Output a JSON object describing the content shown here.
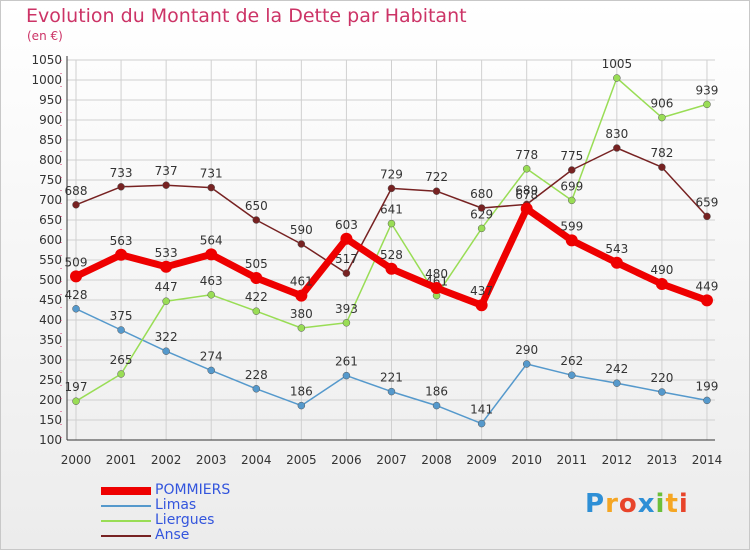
{
  "header": {
    "title": "Evolution du Montant de la Dette par Habitant",
    "unit": "(en €)"
  },
  "colors": {
    "title": "#cc3366",
    "POMMIERS": "#ee0000",
    "Limas": "#5599cc",
    "Liergues": "#99dd55",
    "Anse": "#772222",
    "legend_text": "#3355dd"
  },
  "chart_data": {
    "type": "line",
    "title": "Evolution du Montant de la Dette par Habitant",
    "subtitle": "(en €)",
    "x": [
      "2000",
      "2001",
      "2002",
      "2003",
      "2004",
      "2005",
      "2006",
      "2007",
      "2008",
      "2009",
      "2010",
      "2011",
      "2012",
      "2013",
      "2014"
    ],
    "ylim": [
      100,
      1050
    ],
    "yticks": [
      100,
      150,
      200,
      250,
      300,
      350,
      400,
      450,
      500,
      550,
      600,
      650,
      700,
      750,
      800,
      850,
      900,
      950,
      1000,
      1050
    ],
    "grid": true,
    "legend_position": "bottom-left",
    "series": [
      {
        "name": "POMMIERS",
        "values": [
          509,
          563,
          533,
          564,
          505,
          461,
          603,
          528,
          480,
          437,
          678,
          599,
          543,
          490,
          449
        ],
        "labels": [
          "509",
          "563",
          "533",
          "564",
          "505",
          "461",
          "603",
          "528",
          "480",
          "437",
          "678",
          "599",
          "543",
          "490",
          "449"
        ]
      },
      {
        "name": "Limas",
        "values": [
          428,
          375,
          322,
          274,
          228,
          186,
          261,
          221,
          186,
          141,
          290,
          262,
          242,
          220,
          199
        ],
        "labels": [
          "428",
          "375",
          "322",
          "274",
          "228",
          "186",
          "261",
          "221",
          "186",
          "141",
          "290",
          "262",
          "242",
          "220",
          "199"
        ]
      },
      {
        "name": "Liergues",
        "values": [
          197,
          265,
          447,
          463,
          422,
          380,
          393,
          641,
          461,
          629,
          778,
          699,
          1005,
          906,
          939
        ],
        "labels": [
          "197",
          "265",
          "447",
          "463",
          "422",
          "380",
          "393",
          "641",
          "461",
          "629",
          "778",
          "699",
          "1005",
          "906",
          "939"
        ]
      },
      {
        "name": "Anse",
        "values": [
          688,
          733,
          737,
          731,
          650,
          590,
          517,
          729,
          722,
          680,
          689,
          775,
          830,
          782,
          659
        ],
        "labels": [
          "688",
          "733",
          "737",
          "731",
          "650",
          "590",
          "517",
          "729",
          "722",
          "680",
          "689",
          "775",
          "830",
          "782",
          "659"
        ]
      }
    ]
  },
  "legend": [
    {
      "name": "POMMIERS"
    },
    {
      "name": "Limas"
    },
    {
      "name": "Liergues"
    },
    {
      "name": "Anse"
    }
  ],
  "logo": {
    "text": "Proxiti",
    "letters": [
      "P",
      "r",
      "o",
      "x",
      "i",
      "t",
      "i"
    ],
    "letter_colors": [
      "#2e8fd6",
      "#f5a623",
      "#e8442a",
      "#2e8fd6",
      "#6cbf3a",
      "#f5a623",
      "#e8442a"
    ]
  }
}
